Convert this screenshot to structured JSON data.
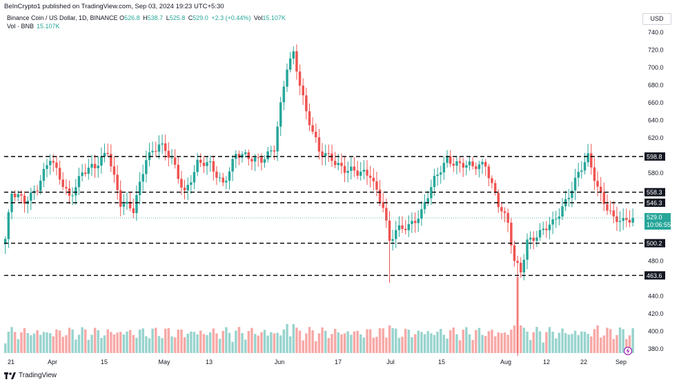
{
  "header": {
    "published_by": "BeInCrypto1 published on TradingView.com, Sep 03, 2024 19:23 UTC+5:30"
  },
  "legend": {
    "symbol": "Binance Coin / US Dollar, 1D, BINANCE",
    "o_label": "O",
    "o_value": "526.8",
    "h_label": "H",
    "h_value": "538.7",
    "l_label": "L",
    "l_value": "525.8",
    "c_label": "C",
    "c_value": "529.0",
    "change": "+2.3 (+0.44%)",
    "vol_label": "Vol",
    "vol_value": "15.107K"
  },
  "volume_legend": {
    "label": "Vol · BNB",
    "value": "15.107K"
  },
  "currency": "USD",
  "brand": "TradingView",
  "colors": {
    "up": "#26a69a",
    "down": "#ef5350",
    "up_volume": "#99d4ce",
    "down_volume": "#f7a9a7",
    "level_line": "#000000",
    "current_price_bg": "#26a69a"
  },
  "chart_data": {
    "type": "candlestick",
    "price_axis_ticks": [
      380.0,
      400.0,
      420.0,
      440.0,
      460.0,
      480.0,
      500.0,
      520.0,
      540.0,
      560.0,
      580.0,
      600.0,
      620.0,
      640.0,
      660.0,
      680.0,
      700.0,
      720.0,
      740.0
    ],
    "time_axis_labels": [
      "21",
      "Apr",
      "15",
      "May",
      "13",
      "Jun",
      "17",
      "Jul",
      "15",
      "Aug",
      "12",
      "22",
      "Sep"
    ],
    "ylim": [
      372,
      748
    ],
    "horizontal_levels": [
      {
        "price": 598.8,
        "label": "598.8"
      },
      {
        "price": 558.3,
        "label": "558.3"
      },
      {
        "price": 546.3,
        "label": "546.3"
      },
      {
        "price": 500.2,
        "label": "500.2"
      },
      {
        "price": 463.6,
        "label": "463.6"
      }
    ],
    "current_price": {
      "price": 529.0,
      "label": "529.0",
      "countdown": "10:06:55"
    },
    "price_series_trend": [
      [
        0,
        505
      ],
      [
        2,
        555
      ],
      [
        6,
        548
      ],
      [
        10,
        566
      ],
      [
        14,
        595
      ],
      [
        16,
        580
      ],
      [
        20,
        555
      ],
      [
        24,
        580
      ],
      [
        28,
        585
      ],
      [
        32,
        608
      ],
      [
        36,
        545
      ],
      [
        40,
        536
      ],
      [
        44,
        600
      ],
      [
        48,
        612
      ],
      [
        52,
        594
      ],
      [
        56,
        560
      ],
      [
        60,
        590
      ],
      [
        64,
        588
      ],
      [
        68,
        570
      ],
      [
        72,
        600
      ],
      [
        76,
        596
      ],
      [
        80,
        598
      ],
      [
        84,
        607
      ],
      [
        88,
        700
      ],
      [
        90,
        717
      ],
      [
        92,
        685
      ],
      [
        94,
        650
      ],
      [
        98,
        602
      ],
      [
        102,
        598
      ],
      [
        106,
        585
      ],
      [
        110,
        578
      ],
      [
        114,
        580
      ],
      [
        118,
        543
      ],
      [
        120,
        500
      ],
      [
        122,
        512
      ],
      [
        126,
        522
      ],
      [
        130,
        536
      ],
      [
        134,
        570
      ],
      [
        138,
        598
      ],
      [
        142,
        590
      ],
      [
        146,
        585
      ],
      [
        150,
        592
      ],
      [
        154,
        545
      ],
      [
        157,
        520
      ],
      [
        159,
        478
      ],
      [
        161,
        470
      ],
      [
        163,
        505
      ],
      [
        167,
        510
      ],
      [
        171,
        522
      ],
      [
        175,
        550
      ],
      [
        179,
        578
      ],
      [
        182,
        596
      ],
      [
        185,
        565
      ],
      [
        187,
        550
      ],
      [
        190,
        528
      ],
      [
        193,
        522
      ],
      [
        196,
        529
      ]
    ],
    "volume_note": "relative bar heights, with a large spike in early August"
  }
}
